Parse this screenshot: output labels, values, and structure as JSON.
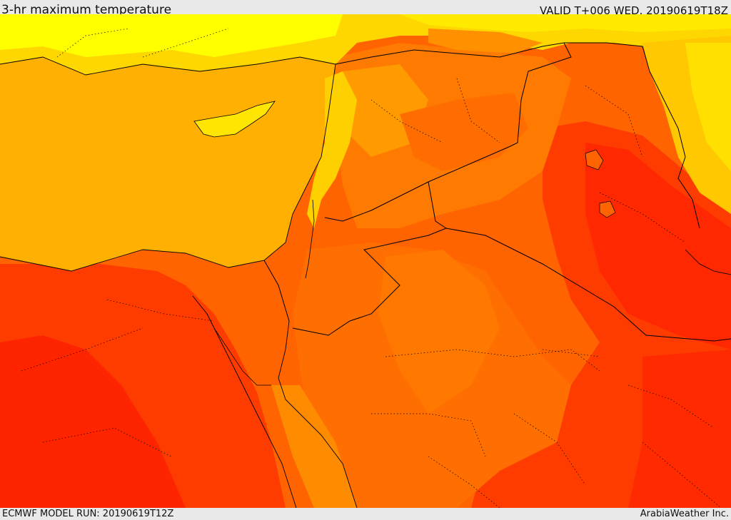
{
  "header": {
    "title": "3-hr maximum temperature",
    "valid": "VALID T+006 WED. 20190619T18Z"
  },
  "footer": {
    "model_run": "ECMWF MODEL RUN: 20190619T12Z",
    "credit": "ArabiaWeather Inc."
  },
  "map": {
    "region": "Eastern Mediterranean and Middle East",
    "colors": {
      "sea_orange": "#ffb000",
      "yellow": "#ffff00",
      "light_yellow_orange": "#ffd700",
      "orange": "#ff8c00",
      "dark_orange": "#ff6400",
      "red_orange": "#ff3c00",
      "red": "#ff2000",
      "border_line": "#000000"
    }
  }
}
